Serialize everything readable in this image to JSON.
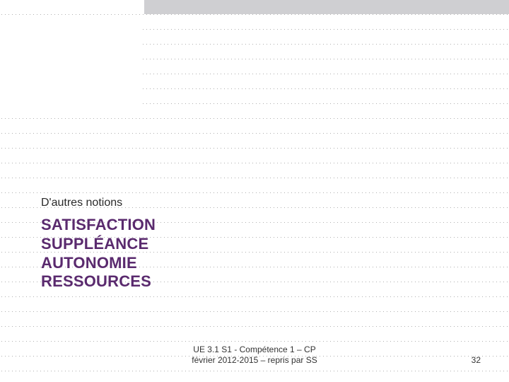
{
  "slide": {
    "subtitle": "D'autres notions",
    "title_lines": [
      "SATISFACTION",
      "SUPPLÉANCE",
      "AUTONOMIE",
      "RESSOURCES"
    ],
    "footer_line1": "UE 3.1 S1 - Compétence 1 – CP",
    "footer_line2": "février 2012-2015 – repris par SS",
    "page_number": "32"
  },
  "style": {
    "title_color": "#5a2a6e",
    "topbar_color": "#cfcfd2",
    "text_color": "#2a2a2a",
    "footer_color": "#333333",
    "background": "#ffffff",
    "title_fontsize": 22,
    "subtitle_fontsize": 16,
    "footer_fontsize": 12
  }
}
